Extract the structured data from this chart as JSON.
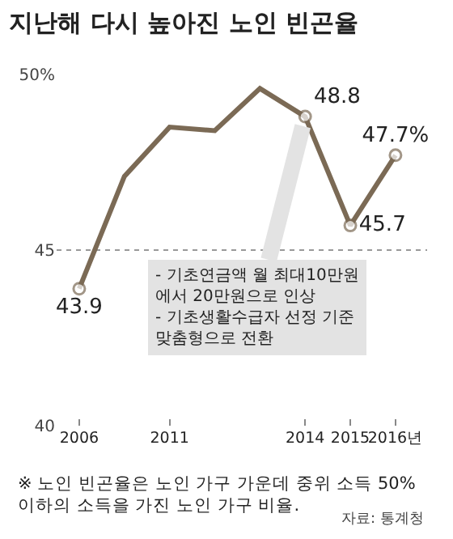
{
  "chart_data": {
    "type": "line",
    "title": "지난해 다시 높아진 노인 빈곤율",
    "categories": [
      "2006",
      null,
      "2011",
      null,
      null,
      "2014",
      "2015",
      "2016년"
    ],
    "series": [
      {
        "color": "#7b6a55",
        "values": [
          43.9,
          47.1,
          48.5,
          48.4,
          49.6,
          48.8,
          45.7,
          47.7
        ],
        "value_labels": [
          "43.9",
          null,
          null,
          null,
          null,
          "48.8",
          "45.7",
          "47.7%"
        ]
      }
    ],
    "ylim": [
      40,
      50
    ],
    "yticks": [
      {
        "value": 40,
        "label": "40"
      },
      {
        "value": 45,
        "label": "45"
      },
      {
        "value": 50,
        "label": "50%"
      }
    ],
    "grid": "y",
    "marker": "circle",
    "line_style": "solid",
    "annotations": [
      {
        "text": "- 기초연금액 월 최대10만원\n에서 20만원으로 인상\n- 기초생활수급자 선정 기준\n맞춤형으로 전환",
        "x": "2014",
        "y": 48.8
      },
      "※ 노인 빈곤율은 노인 가구 가운데 중위 소득 50%\n이하의 소득을 가진 노인 가구 비율.",
      "자료: 통계청"
    ]
  }
}
